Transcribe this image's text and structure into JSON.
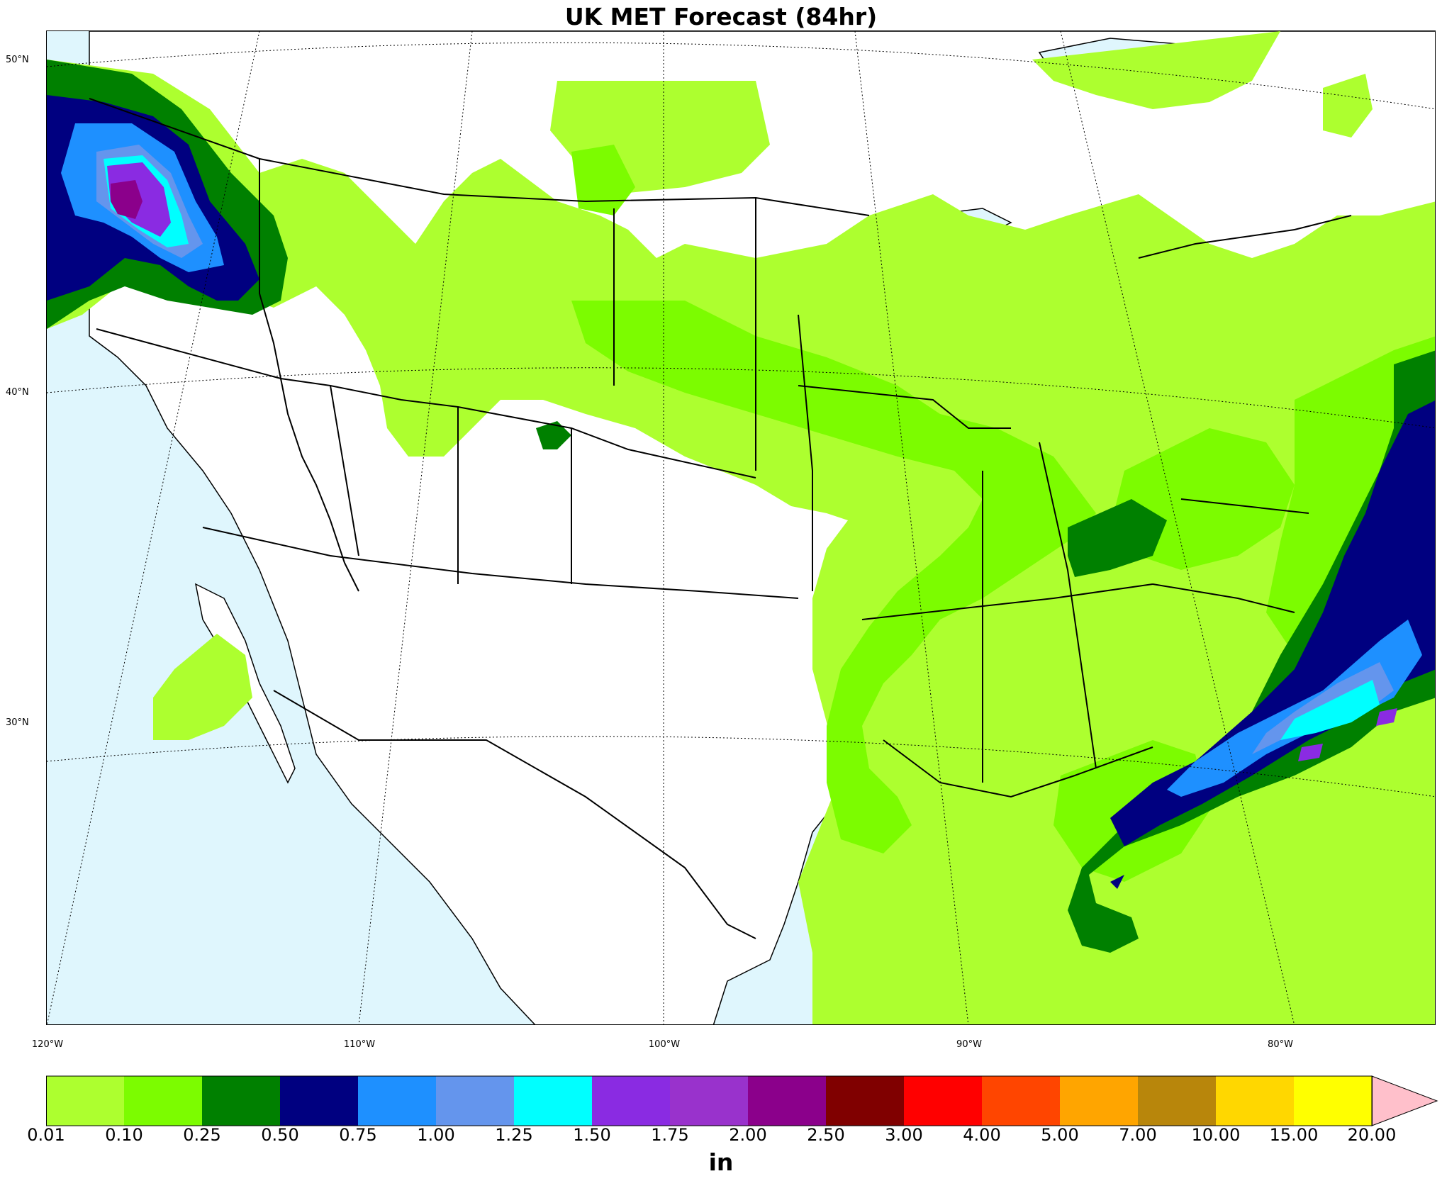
{
  "title": "UK MET Forecast (84hr)",
  "units": "in",
  "latitude_labels": [
    {
      "text": "50°N",
      "value": 50
    },
    {
      "text": "40°N",
      "value": 40
    },
    {
      "text": "30°N",
      "value": 30
    }
  ],
  "longitude_labels": [
    {
      "text": "120°W",
      "value": -120
    },
    {
      "text": "110°W",
      "value": -110
    },
    {
      "text": "100°W",
      "value": -100
    },
    {
      "text": "90°W",
      "value": -90
    },
    {
      "text": "80°W",
      "value": -80
    }
  ],
  "colors": {
    "ocean": "#dff6fd",
    "land": "#ffffff",
    "border": "#000000"
  },
  "colorbar": {
    "ticks": [
      "0.01",
      "0.10",
      "0.25",
      "0.50",
      "0.75",
      "1.00",
      "1.25",
      "1.50",
      "1.75",
      "2.00",
      "2.50",
      "3.00",
      "4.00",
      "5.00",
      "7.00",
      "10.00",
      "15.00",
      "20.00"
    ],
    "colors": [
      "#adff2f",
      "#7cfc00",
      "#008000",
      "#000080",
      "#1e90ff",
      "#6495ed",
      "#00ffff",
      "#8a2be2",
      "#9932cc",
      "#8b008b",
      "#800000",
      "#ff0000",
      "#ff4500",
      "#ffa500",
      "#b8860b",
      "#ffd700",
      "#ffff00"
    ],
    "extend_color": "#ffc0cb"
  }
}
